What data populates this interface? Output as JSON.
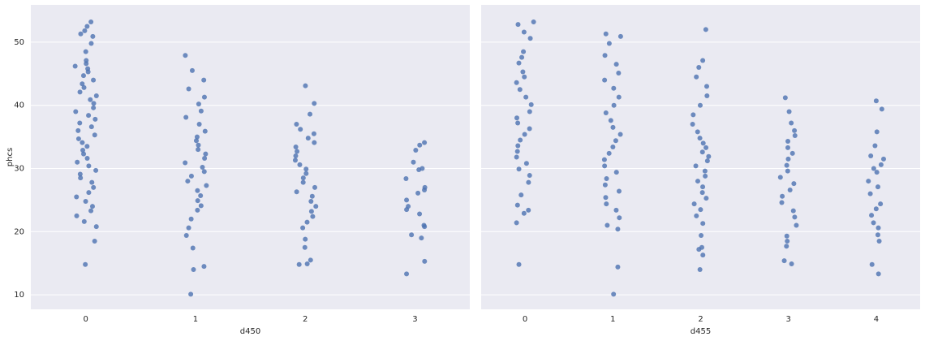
{
  "chart_data": [
    {
      "type": "strip",
      "xlabel": "d450",
      "ylabel": "phcs",
      "color": "#4c72b0",
      "grid": true,
      "categories": [
        "0",
        "1",
        "2",
        "3"
      ],
      "ylim": [
        7.7,
        55.9
      ],
      "yticks": [
        10,
        20,
        30,
        40,
        50
      ],
      "values": [
        [
          53.2,
          52.5,
          51.8,
          51.3,
          50.9,
          49.8,
          48.5,
          47.1,
          46.6,
          46.2,
          45.8,
          45.3,
          44.7,
          44.0,
          43.4,
          42.8,
          42.1,
          41.5,
          40.9,
          40.3,
          39.6,
          39.0,
          38.4,
          37.8,
          37.2,
          36.6,
          36.0,
          35.3,
          34.7,
          34.1,
          33.5,
          32.9,
          32.3,
          31.6,
          31.0,
          30.4,
          29.7,
          29.1,
          28.5,
          27.8,
          27.0,
          26.2,
          25.5,
          24.8,
          24.0,
          23.3,
          22.5,
          21.6,
          20.8,
          18.5,
          14.8
        ],
        [
          47.9,
          45.5,
          44.0,
          42.6,
          41.3,
          40.2,
          39.1,
          38.1,
          37.0,
          35.9,
          35.0,
          34.4,
          33.7,
          33.0,
          32.3,
          31.6,
          30.9,
          30.2,
          29.5,
          28.8,
          28.0,
          27.3,
          26.5,
          25.7,
          24.9,
          24.1,
          23.4,
          22.0,
          20.6,
          19.4,
          17.4,
          14.5,
          14.0,
          10.1
        ],
        [
          43.1,
          40.3,
          38.6,
          37.0,
          36.2,
          35.5,
          34.8,
          34.1,
          33.4,
          32.7,
          32.0,
          31.3,
          30.6,
          29.9,
          29.2,
          28.5,
          27.8,
          27.0,
          26.3,
          25.6,
          24.8,
          24.0,
          23.2,
          22.4,
          21.5,
          20.6,
          18.8,
          17.5,
          15.5,
          14.8,
          14.9
        ],
        [
          34.1,
          33.7,
          32.9,
          31.0,
          30.0,
          29.8,
          28.4,
          27.0,
          26.6,
          26.1,
          25.0,
          24.0,
          23.5,
          22.8,
          21.0,
          20.8,
          19.5,
          19.0,
          15.3,
          13.3
        ]
      ]
    },
    {
      "type": "strip",
      "xlabel": "d455",
      "color": "#4c72b0",
      "grid": true,
      "categories": [
        "0",
        "1",
        "2",
        "3",
        "4"
      ],
      "ylim": [
        7.7,
        55.9
      ],
      "yticks": [
        10,
        20,
        30,
        40,
        50
      ],
      "values": [
        [
          53.2,
          52.8,
          51.6,
          50.6,
          48.5,
          47.6,
          46.7,
          45.3,
          44.5,
          43.6,
          42.5,
          41.3,
          40.1,
          39.0,
          38.0,
          37.2,
          36.3,
          35.4,
          34.5,
          33.6,
          32.7,
          31.8,
          30.8,
          29.9,
          28.9,
          27.8,
          25.8,
          24.2,
          23.4,
          22.9,
          21.4,
          14.8
        ],
        [
          51.3,
          50.9,
          49.8,
          47.9,
          46.5,
          45.1,
          44.0,
          42.7,
          41.3,
          40.0,
          38.8,
          37.6,
          36.5,
          35.4,
          34.4,
          33.4,
          32.4,
          31.4,
          30.4,
          29.4,
          28.4,
          27.4,
          26.4,
          25.4,
          24.4,
          23.4,
          22.2,
          21.0,
          20.4,
          14.4,
          10.1
        ],
        [
          52.0,
          47.1,
          46.0,
          44.5,
          43.0,
          41.5,
          40.0,
          38.5,
          37.0,
          35.8,
          34.8,
          34.0,
          33.3,
          32.6,
          31.9,
          31.2,
          30.4,
          29.6,
          28.8,
          28.0,
          27.1,
          26.2,
          25.3,
          24.4,
          23.5,
          22.5,
          21.3,
          19.4,
          17.5,
          17.2,
          16.3,
          14.0
        ],
        [
          41.2,
          39.0,
          37.2,
          36.0,
          35.2,
          34.3,
          33.3,
          32.4,
          31.5,
          30.5,
          29.6,
          28.6,
          27.6,
          26.6,
          25.6,
          24.6,
          23.3,
          22.3,
          21.0,
          19.3,
          18.5,
          17.7,
          15.4,
          14.9
        ],
        [
          40.7,
          39.4,
          35.8,
          33.6,
          32.0,
          31.5,
          30.6,
          30.0,
          29.4,
          28.0,
          27.1,
          26.0,
          24.4,
          23.6,
          22.6,
          21.4,
          20.6,
          19.5,
          18.5,
          14.8,
          13.3
        ]
      ]
    }
  ]
}
